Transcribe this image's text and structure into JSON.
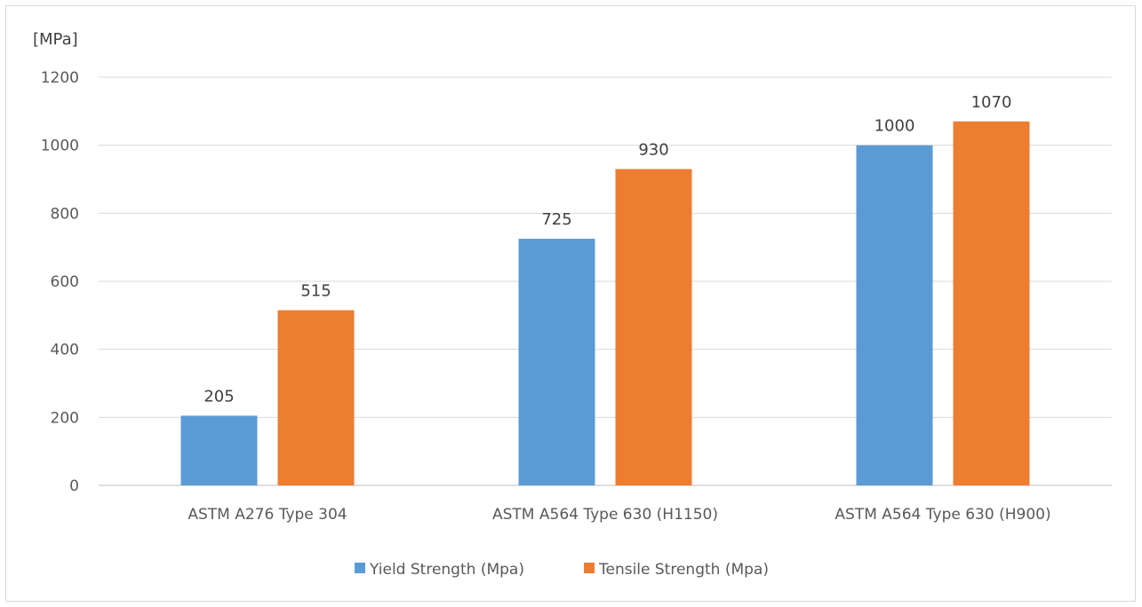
{
  "chart_data": {
    "type": "bar",
    "ylabel": "[MPa]",
    "categories": [
      "ASTM A276 Type 304",
      "ASTM A564 Type 630 (H1150)",
      "ASTM A564 Type 630 (H900)"
    ],
    "series": [
      {
        "name": "Yield Strength (Mpa)",
        "values": [
          205,
          725,
          1000
        ],
        "color": "#5b9bd5"
      },
      {
        "name": "Tensile Strength (Mpa)",
        "values": [
          515,
          930,
          1070
        ],
        "color": "#ed7d31"
      }
    ],
    "ylim": [
      0,
      1200
    ],
    "yticks": [
      0,
      200,
      400,
      600,
      800,
      1000,
      1200
    ],
    "grid": true,
    "data_labels": true,
    "legend": "bottom"
  }
}
